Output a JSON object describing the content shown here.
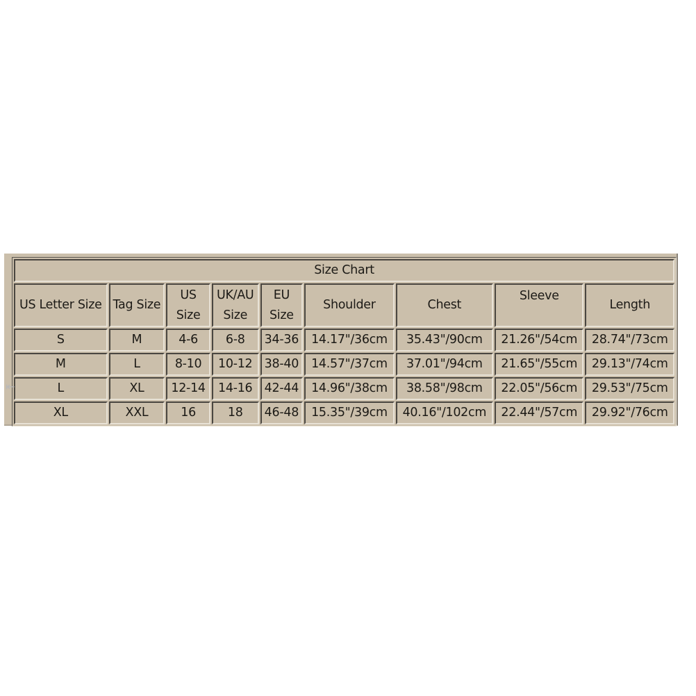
{
  "title": "Size Chart",
  "headers": [
    [
      "US Letter Size"
    ],
    [
      "Tag Size"
    ],
    [
      "US",
      "Size"
    ],
    [
      "UK/AU",
      "Size"
    ],
    [
      "EU",
      "Size"
    ],
    [
      "Shoulder"
    ],
    [
      "Chest"
    ],
    [
      "Sleeve"
    ],
    [
      "Length"
    ]
  ],
  "rows": [
    [
      "S",
      "M",
      "4-6",
      "6-8",
      "34-36",
      "14.17\"/36cm",
      "35.43\"/90cm",
      "21.26\"/54cm",
      "28.74\"/73cm"
    ],
    [
      "M",
      "L",
      "8-10",
      "10-12",
      "38-40",
      "14.57\"/37cm",
      "37.01\"/94cm",
      "21.65\"/55cm",
      "29.13\"/74cm"
    ],
    [
      "L",
      "XL",
      "12-14",
      "14-16",
      "42-44",
      "14.96\"/38cm",
      "38.58\"/98cm",
      "22.05\"/56cm",
      "29.53\"/75cm"
    ],
    [
      "XL",
      "XXL",
      "16",
      "18",
      "46-48",
      "15.35\"/39cm",
      "40.16\"/102cm",
      "22.44\"/57cm",
      "29.92\"/76cm"
    ]
  ],
  "colors": {
    "background": "#cbbfab",
    "text": "#1c1a16"
  }
}
